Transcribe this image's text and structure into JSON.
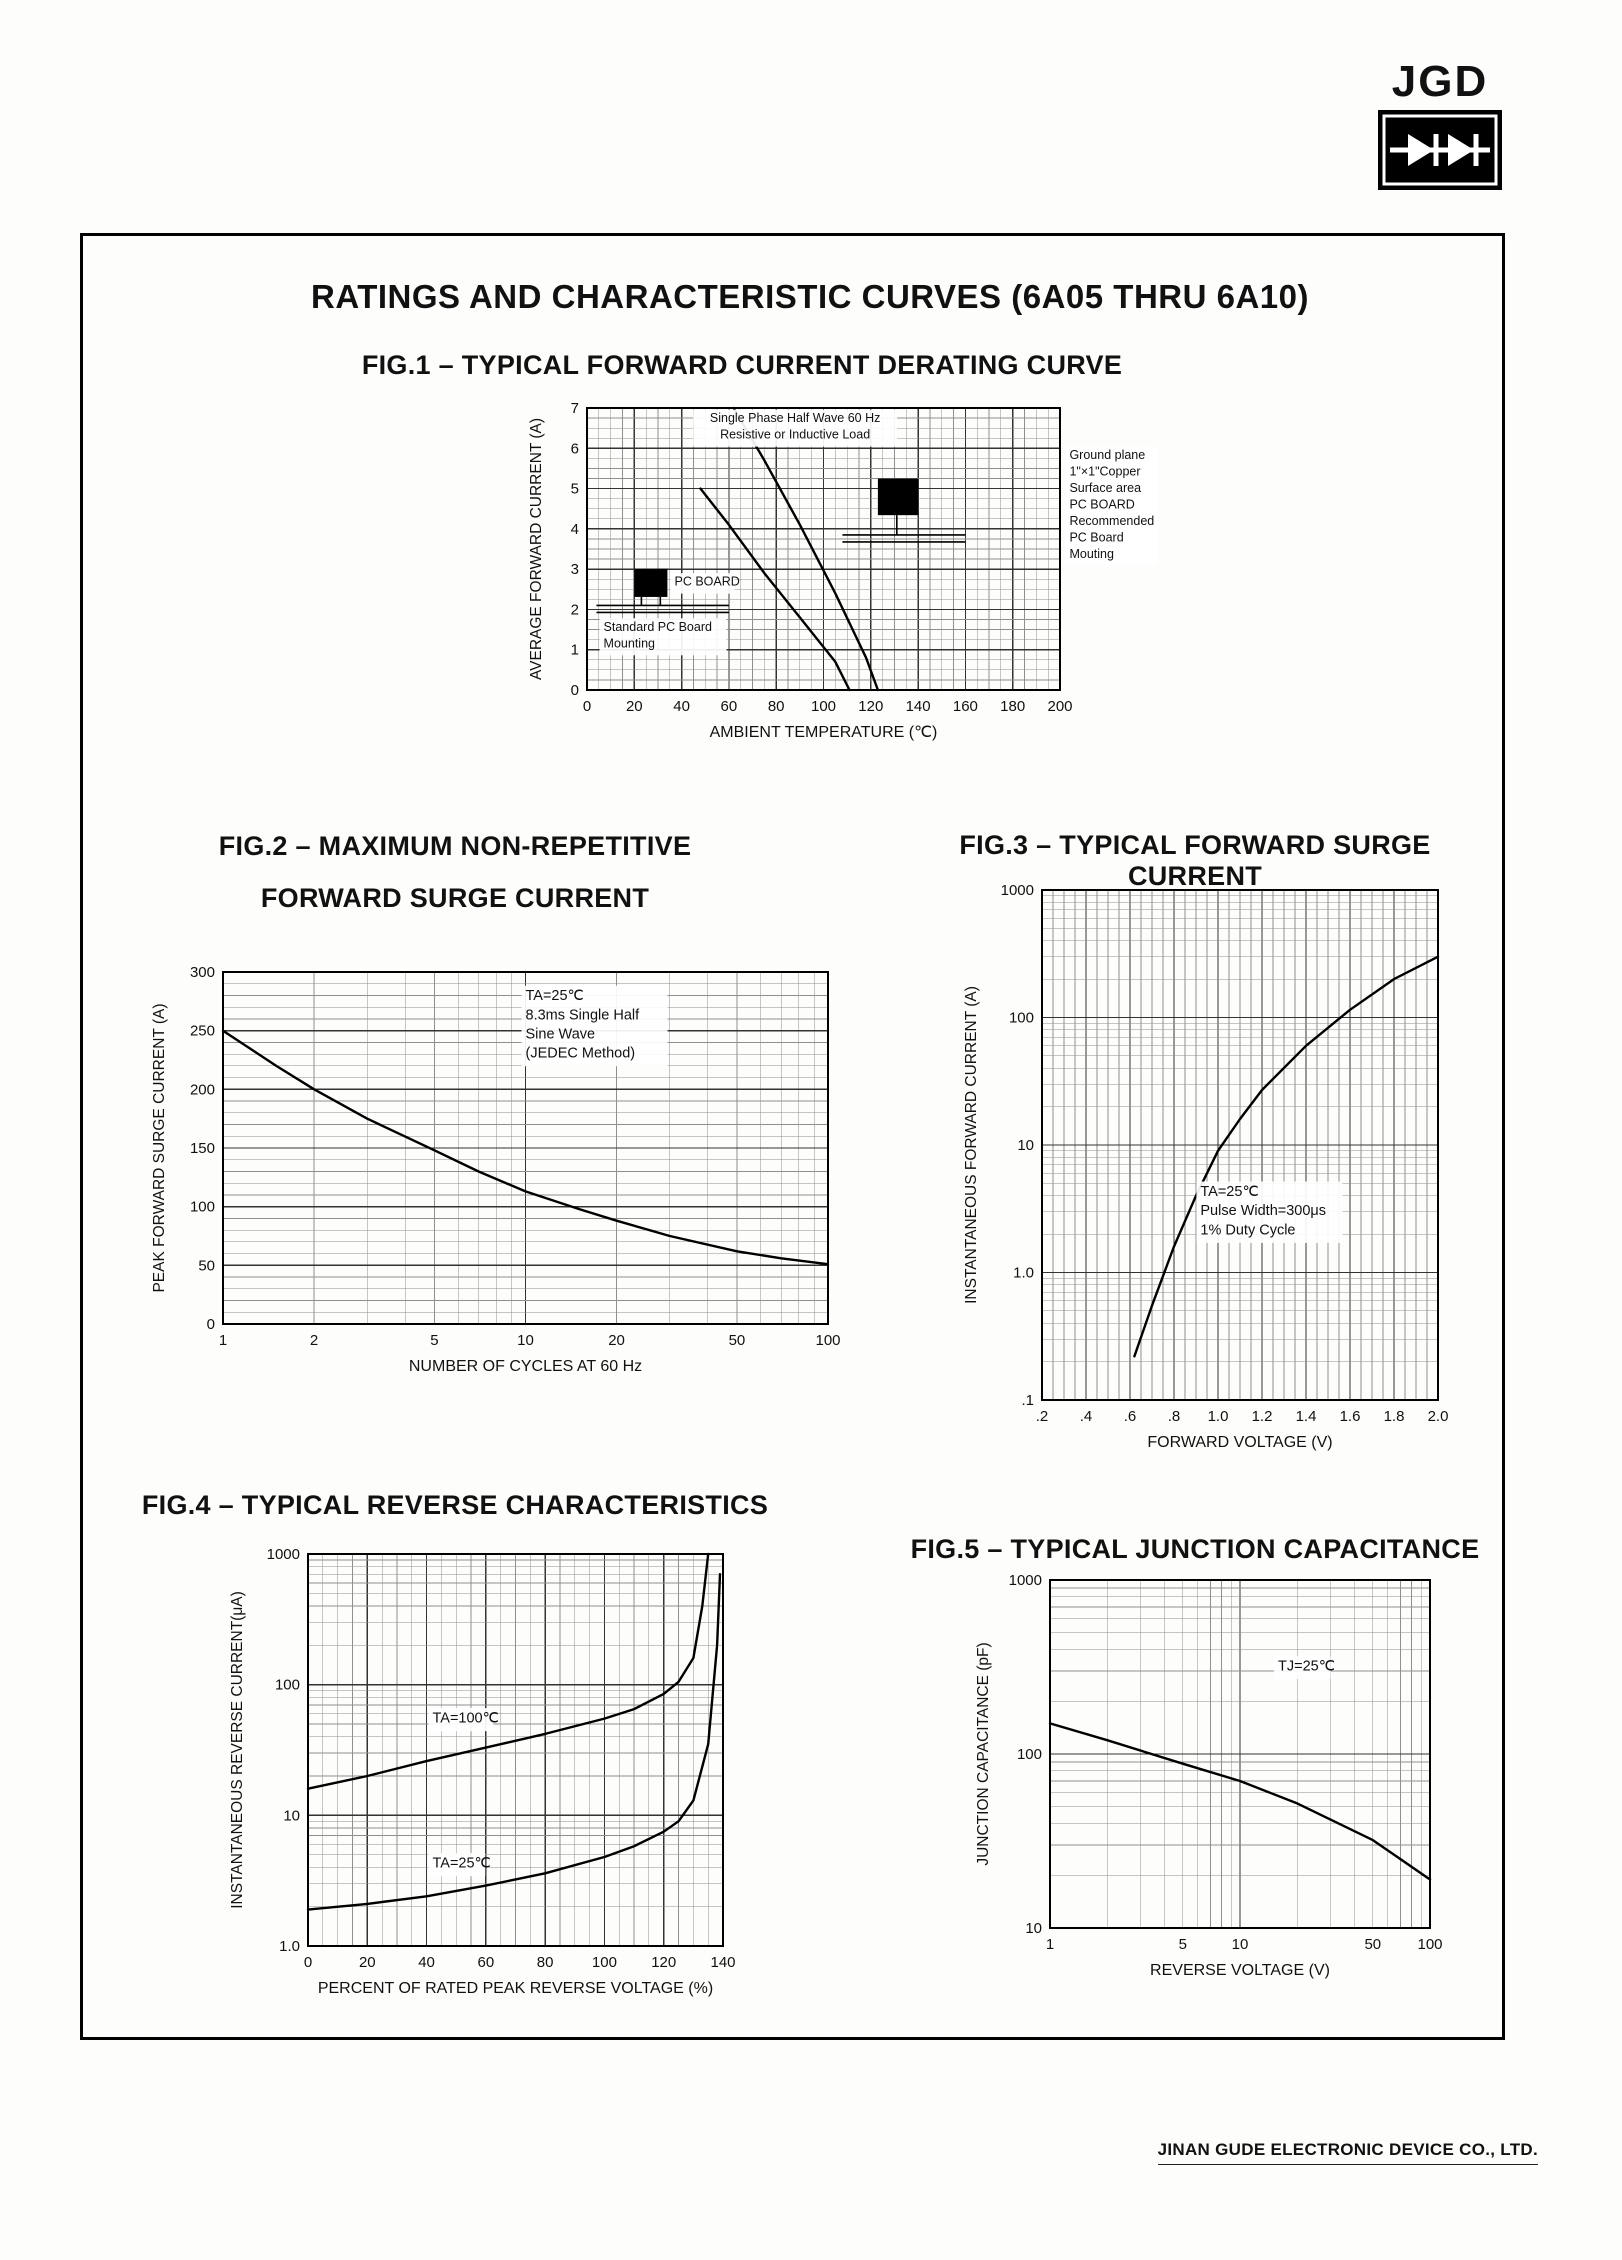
{
  "logo": {
    "text": "JGD"
  },
  "page": {
    "title": "RATINGS AND CHARACTERISTIC CURVES (6A05 THRU 6A10)"
  },
  "footer": {
    "text": "JINAN GUDE ELECTRONIC DEVICE CO., LTD."
  },
  "chart_data": [
    {
      "id": "fig1",
      "type": "line",
      "title": "FIG.1 – TYPICAL FORWARD CURRENT DERATING CURVE",
      "xlabel": "AMBIENT TEMPERATURE  (℃)",
      "ylabel": "AVERAGE FORWARD CURRENT (A)",
      "xmin": 0,
      "xmax": 200,
      "xlog": false,
      "xminor": 5,
      "xmajor": 20,
      "ymin": 0,
      "ymax": 7,
      "ylog": false,
      "yminor": 0.25,
      "ymajor": 1,
      "xticks": [
        {
          "v": 0,
          "label": "0"
        },
        {
          "v": 20,
          "label": "20"
        },
        {
          "v": 40,
          "label": "40"
        },
        {
          "v": 60,
          "label": "60"
        },
        {
          "v": 80,
          "label": "80"
        },
        {
          "v": 100,
          "label": "100"
        },
        {
          "v": 120,
          "label": "120"
        },
        {
          "v": 140,
          "label": "140"
        },
        {
          "v": 160,
          "label": "160"
        },
        {
          "v": 180,
          "label": "180"
        },
        {
          "v": 200,
          "label": "200"
        }
      ],
      "yticks": [
        {
          "v": 0,
          "label": "0"
        },
        {
          "v": 1,
          "label": "1"
        },
        {
          "v": 2,
          "label": "2"
        },
        {
          "v": 3,
          "label": "3"
        },
        {
          "v": 4,
          "label": "4"
        },
        {
          "v": 5,
          "label": "5"
        },
        {
          "v": 6,
          "label": "6"
        },
        {
          "v": 7,
          "label": "7"
        }
      ],
      "series": [
        {
          "name": "Recommended PC board mounting",
          "points": [
            [
              62,
              7
            ],
            [
              75,
              5.7
            ],
            [
              90,
              4.1
            ],
            [
              105,
              2.4
            ],
            [
              118,
              0.8
            ],
            [
              123,
              0
            ]
          ]
        },
        {
          "name": "Standard PC board mounting",
          "points": [
            [
              48,
              5
            ],
            [
              60,
              4.1
            ],
            [
              75,
              2.9
            ],
            [
              90,
              1.8
            ],
            [
              105,
              0.7
            ],
            [
              111,
              0
            ]
          ]
        }
      ],
      "annotations": [
        {
          "fx": 0.44,
          "fy": 0.05,
          "anchor": "middle",
          "size": 12.5,
          "lines": [
            "Single Phase Half Wave 60 Hz",
            "Resistive or Inductive Load"
          ]
        },
        {
          "fx": 1.02,
          "fy": 0.18,
          "anchor": "start",
          "size": 12.5,
          "lines": [
            "Ground plane",
            "1\"×1\"Copper",
            "Surface area",
            "PC BOARD",
            "Recommended",
            "PC Board",
            "Mouting"
          ]
        },
        {
          "fx": 0.185,
          "fy": 0.63,
          "anchor": "start",
          "size": 12.5,
          "lines": [
            "PC BOARD"
          ]
        },
        {
          "fx": 0.035,
          "fy": 0.79,
          "anchor": "start",
          "size": 12.5,
          "lines": [
            "Standard PC Board",
            "Mounting"
          ]
        }
      ],
      "shapes": [
        {
          "type": "rect",
          "fx": 0.615,
          "fy": 0.25,
          "fw": 0.085,
          "fh": 0.13
        },
        {
          "type": "line",
          "fx1": 0.655,
          "fy1": 0.38,
          "fx2": 0.655,
          "fy2": 0.45
        },
        {
          "type": "line",
          "fx1": 0.54,
          "fy1": 0.45,
          "fx2": 0.8,
          "fy2": 0.45
        },
        {
          "type": "line",
          "fx1": 0.54,
          "fy1": 0.475,
          "fx2": 0.8,
          "fy2": 0.475
        },
        {
          "type": "rect",
          "fx": 0.1,
          "fy": 0.57,
          "fw": 0.07,
          "fh": 0.1
        },
        {
          "type": "line",
          "fx1": 0.115,
          "fy1": 0.67,
          "fx2": 0.115,
          "fy2": 0.7
        },
        {
          "type": "line",
          "fx1": 0.155,
          "fy1": 0.67,
          "fx2": 0.155,
          "fy2": 0.7
        },
        {
          "type": "line",
          "fx1": 0.02,
          "fy1": 0.7,
          "fx2": 0.3,
          "fy2": 0.7
        },
        {
          "type": "line",
          "fx1": 0.02,
          "fy1": 0.725,
          "fx2": 0.3,
          "fy2": 0.725
        }
      ]
    },
    {
      "id": "fig2",
      "type": "line",
      "title": "FIG.2 – MAXIMUM NON-REPETITIVE FORWARD SURGE CURRENT",
      "title_lines": [
        "FIG.2 – MAXIMUM NON-REPETITIVE",
        "FORWARD SURGE CURRENT"
      ],
      "xlabel": "NUMBER OF CYCLES AT 60 Hz",
      "ylabel": "PEAK FORWARD SURGE CURRENT (A)",
      "xmin": 1,
      "xmax": 100,
      "xlog": true,
      "ymin": 0,
      "ymax": 300,
      "ylog": false,
      "yminor": 10,
      "ymajor": 50,
      "xticks": [
        {
          "v": 1,
          "label": "1"
        },
        {
          "v": 2,
          "label": "2"
        },
        {
          "v": 5,
          "label": "5"
        },
        {
          "v": 10,
          "label": "10"
        },
        {
          "v": 20,
          "label": "20"
        },
        {
          "v": 50,
          "label": "50"
        },
        {
          "v": 100,
          "label": "100"
        }
      ],
      "yticks": [
        {
          "v": 0,
          "label": "0"
        },
        {
          "v": 50,
          "label": "50"
        },
        {
          "v": 100,
          "label": "100"
        },
        {
          "v": 150,
          "label": "150"
        },
        {
          "v": 200,
          "label": "200"
        },
        {
          "v": 250,
          "label": "250"
        },
        {
          "v": 300,
          "label": "300"
        }
      ],
      "series": [
        {
          "name": "surge current",
          "points": [
            [
              1,
              250
            ],
            [
              1.5,
              220
            ],
            [
              2,
              200
            ],
            [
              3,
              175
            ],
            [
              5,
              148
            ],
            [
              7,
              130
            ],
            [
              10,
              113
            ],
            [
              15,
              98
            ],
            [
              20,
              88
            ],
            [
              30,
              75
            ],
            [
              50,
              62
            ],
            [
              70,
              56
            ],
            [
              100,
              51
            ]
          ]
        }
      ],
      "annotations": [
        {
          "fx": 0.5,
          "fy": 0.08,
          "anchor": "start",
          "size": 14.5,
          "lines": [
            "TA=25℃",
            "8.3ms Single Half",
            "Sine Wave",
            "(JEDEC Method)"
          ]
        }
      ]
    },
    {
      "id": "fig3",
      "type": "line",
      "title": "FIG.3 – TYPICAL FORWARD SURGE CURRENT",
      "xlabel": "FORWARD VOLTAGE (V)",
      "ylabel": "INSTANTANEOUS FORWARD CURRENT (A)",
      "xmin": 0.2,
      "xmax": 2.0,
      "xlog": false,
      "xminor": 0.05,
      "xmajor": 0.2,
      "ymin": 0.1,
      "ymax": 1000,
      "ylog": true,
      "xticks": [
        {
          "v": 0.2,
          "label": ".2"
        },
        {
          "v": 0.4,
          "label": ".4"
        },
        {
          "v": 0.6,
          "label": ".6"
        },
        {
          "v": 0.8,
          "label": ".8"
        },
        {
          "v": 1.0,
          "label": "1.0"
        },
        {
          "v": 1.2,
          "label": "1.2"
        },
        {
          "v": 1.4,
          "label": "1.4"
        },
        {
          "v": 1.6,
          "label": "1.6"
        },
        {
          "v": 1.8,
          "label": "1.8"
        },
        {
          "v": 2.0,
          "label": "2.0"
        }
      ],
      "yticks": [
        {
          "v": 0.1,
          "label": ".1"
        },
        {
          "v": 1,
          "label": "1.0"
        },
        {
          "v": 10,
          "label": "10"
        },
        {
          "v": 100,
          "label": "100"
        },
        {
          "v": 1000,
          "label": "1000"
        }
      ],
      "series": [
        {
          "name": "forward current",
          "points": [
            [
              0.62,
              0.22
            ],
            [
              0.7,
              0.55
            ],
            [
              0.8,
              1.6
            ],
            [
              0.9,
              4
            ],
            [
              1.0,
              9
            ],
            [
              1.1,
              16
            ],
            [
              1.2,
              27
            ],
            [
              1.4,
              60
            ],
            [
              1.6,
              115
            ],
            [
              1.8,
              200
            ],
            [
              2.0,
              300
            ]
          ]
        }
      ],
      "annotations": [
        {
          "fx": 0.4,
          "fy": 0.6,
          "anchor": "start",
          "size": 14.5,
          "lines": [
            "TA=25℃",
            "Pulse Width=300μs",
            "1% Duty Cycle"
          ]
        }
      ]
    },
    {
      "id": "fig4",
      "type": "line",
      "title": "FIG.4 – TYPICAL REVERSE CHARACTERISTICS",
      "xlabel": "PERCENT OF RATED  PEAK REVERSE VOLTAGE (%)",
      "ylabel": "INSTANTANEOUS REVERSE CURRENT(μA)",
      "xmin": 0,
      "xmax": 140,
      "xlog": false,
      "xminor": 5,
      "xmajor": 20,
      "ymin": 1,
      "ymax": 1000,
      "ylog": true,
      "xticks": [
        {
          "v": 0,
          "label": "0"
        },
        {
          "v": 20,
          "label": "20"
        },
        {
          "v": 40,
          "label": "40"
        },
        {
          "v": 60,
          "label": "60"
        },
        {
          "v": 80,
          "label": "80"
        },
        {
          "v": 100,
          "label": "100"
        },
        {
          "v": 120,
          "label": "120"
        },
        {
          "v": 140,
          "label": "140"
        }
      ],
      "yticks": [
        {
          "v": 1,
          "label": "1.0"
        },
        {
          "v": 10,
          "label": "10"
        },
        {
          "v": 100,
          "label": "100"
        },
        {
          "v": 1000,
          "label": "1000"
        }
      ],
      "series": [
        {
          "name": "TA=100℃",
          "points": [
            [
              0,
              16
            ],
            [
              20,
              20
            ],
            [
              40,
              26
            ],
            [
              60,
              33
            ],
            [
              80,
              42
            ],
            [
              100,
              55
            ],
            [
              110,
              65
            ],
            [
              120,
              85
            ],
            [
              125,
              105
            ],
            [
              130,
              160
            ],
            [
              133,
              400
            ],
            [
              135,
              1000
            ]
          ]
        },
        {
          "name": "TA=25℃",
          "points": [
            [
              0,
              1.9
            ],
            [
              20,
              2.1
            ],
            [
              40,
              2.4
            ],
            [
              60,
              2.9
            ],
            [
              80,
              3.6
            ],
            [
              100,
              4.8
            ],
            [
              110,
              5.8
            ],
            [
              120,
              7.5
            ],
            [
              125,
              9
            ],
            [
              130,
              13
            ],
            [
              135,
              35
            ],
            [
              138,
              200
            ],
            [
              139,
              700
            ]
          ]
        }
      ],
      "annotations": [
        {
          "fx": 0.3,
          "fy": 0.43,
          "anchor": "start",
          "size": 14.5,
          "lines": [
            "TA=100℃"
          ]
        },
        {
          "fx": 0.3,
          "fy": 0.8,
          "anchor": "start",
          "size": 14.5,
          "lines": [
            "TA=25℃"
          ]
        }
      ]
    },
    {
      "id": "fig5",
      "type": "line",
      "title": "FIG.5 – TYPICAL JUNCTION CAPACITANCE",
      "xlabel": "REVERSE VOLTAGE  (V)",
      "ylabel": "JUNCTION CAPACITANCE  (pF)",
      "xmin": 1,
      "xmax": 100,
      "xlog": true,
      "ymin": 10,
      "ymax": 1000,
      "ylog": true,
      "xticks": [
        {
          "v": 1,
          "label": "1"
        },
        {
          "v": 5,
          "label": "5"
        },
        {
          "v": 10,
          "label": "10"
        },
        {
          "v": 50,
          "label": "50"
        },
        {
          "v": 100,
          "label": "100"
        }
      ],
      "yticks": [
        {
          "v": 10,
          "label": "10"
        },
        {
          "v": 100,
          "label": "100"
        },
        {
          "v": 1000,
          "label": "1000"
        }
      ],
      "series": [
        {
          "name": "junction capacitance",
          "points": [
            [
              1,
              150
            ],
            [
              2,
              120
            ],
            [
              5,
              88
            ],
            [
              10,
              70
            ],
            [
              20,
              52
            ],
            [
              50,
              32
            ],
            [
              100,
              19
            ]
          ]
        }
      ],
      "annotations": [
        {
          "fx": 0.6,
          "fy": 0.26,
          "anchor": "start",
          "size": 14.5,
          "lines": [
            "TJ=25℃"
          ]
        }
      ]
    }
  ]
}
